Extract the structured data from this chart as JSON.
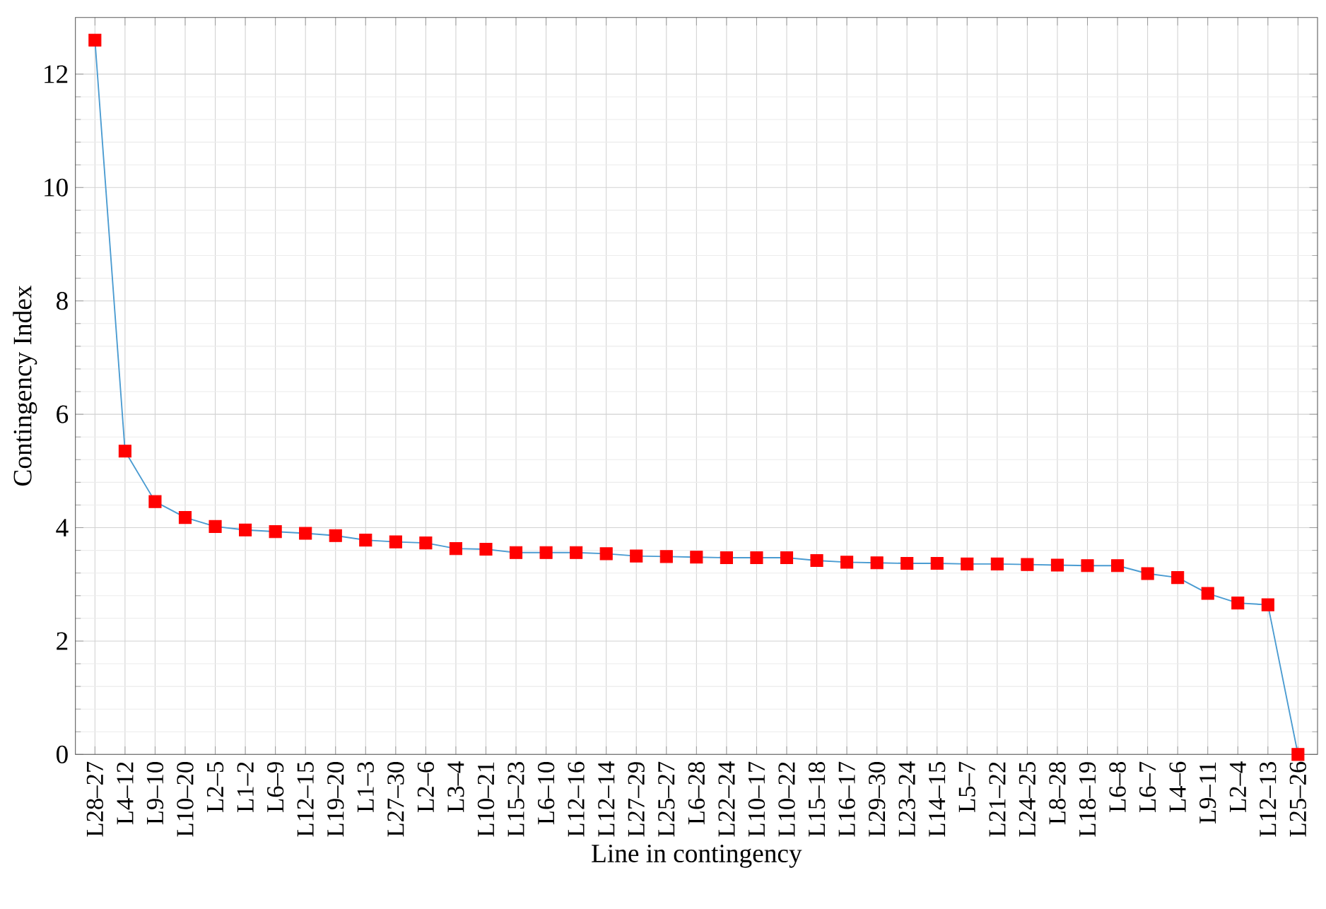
{
  "chart_data": {
    "type": "line",
    "xlabel": "Line in contingency",
    "ylabel": "Contingency Index",
    "categories": [
      "L28–27",
      "L4–12",
      "L9–10",
      "L10–20",
      "L2–5",
      "L1–2",
      "L6–9",
      "L12–15",
      "L19–20",
      "L1–3",
      "L27–30",
      "L2–6",
      "L3–4",
      "L10–21",
      "L15–23",
      "L6–10",
      "L12–16",
      "L12–14",
      "L27–29",
      "L25–27",
      "L6–28",
      "L22–24",
      "L10–17",
      "L10–22",
      "L15–18",
      "L16–17",
      "L29–30",
      "L23–24",
      "L14–15",
      "L5–7",
      "L21–22",
      "L24–25",
      "L8–28",
      "L18–19",
      "L6–8",
      "L6–7",
      "L4–6",
      "L9–11",
      "L2–4",
      "L12–13",
      "L25–26"
    ],
    "series": [
      {
        "color": "#4a9bd1",
        "marker": "square",
        "colors": [
          "#ff0000",
          "#ff0000",
          "#ff0000",
          "#ff0000",
          "#ff0000",
          "#ff0000",
          "#ff0000",
          "#ff0000",
          "#ff0000",
          "#ff0000",
          "#ff0000",
          "#ff0000",
          "#ff0000",
          "#ff0000",
          "#ff0000",
          "#ff0000",
          "#ff0000",
          "#ff0000",
          "#ff0000",
          "#ff0000",
          "#ff0000",
          "#ff0000",
          "#ff0000",
          "#ff0000",
          "#ff0000",
          "#ff0000",
          "#ff0000",
          "#ff0000",
          "#ff0000",
          "#ff0000",
          "#ff0000",
          "#ff0000",
          "#ff0000",
          "#ff0000",
          "#ff0000",
          "#ff0000",
          "#ff0000",
          "#ff0000",
          "#ff0000",
          "#ff0000",
          "#ff0000"
        ],
        "values": [
          12.6,
          5.35,
          4.46,
          4.18,
          4.02,
          3.96,
          3.93,
          3.9,
          3.86,
          3.78,
          3.75,
          3.73,
          3.63,
          3.62,
          3.56,
          3.56,
          3.56,
          3.54,
          3.5,
          3.49,
          3.48,
          3.47,
          3.47,
          3.47,
          3.42,
          3.39,
          3.38,
          3.37,
          3.37,
          3.36,
          3.36,
          3.35,
          3.34,
          3.33,
          3.33,
          3.19,
          3.12,
          2.84,
          2.67,
          2.64,
          0
        ]
      }
    ],
    "ylim": [
      0,
      13
    ],
    "yticks": [
      0,
      2,
      4,
      6,
      8,
      10,
      12
    ],
    "grid": true,
    "line_style": "solid"
  }
}
